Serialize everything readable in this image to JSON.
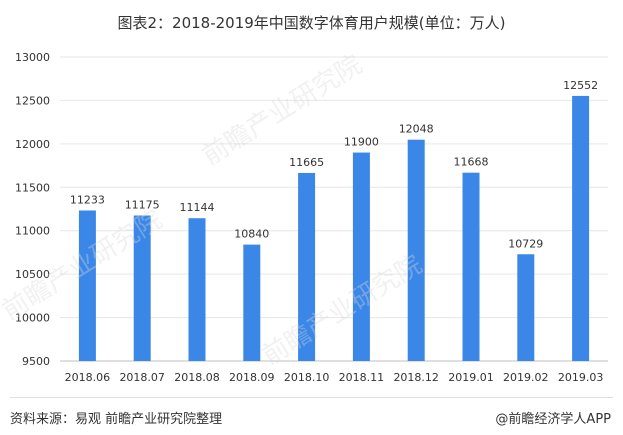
{
  "chart_data": {
    "type": "bar",
    "title": "图表2：2018-2019年中国数字体育用户规模(单位：万人)",
    "categories": [
      "2018.06",
      "2018.07",
      "2018.08",
      "2018.09",
      "2018.10",
      "2018.11",
      "2018.12",
      "2019.01",
      "2019.02",
      "2019.03"
    ],
    "values": [
      11233,
      11175,
      11144,
      10840,
      11665,
      11900,
      12048,
      11668,
      10729,
      12552
    ],
    "data_labels": [
      "11233",
      "11175",
      "11144",
      "10840",
      "11665",
      "11900",
      "12048",
      "11668",
      "10729",
      "12552"
    ],
    "yticks": [
      9500,
      10000,
      10500,
      11000,
      11500,
      12000,
      12500,
      13000
    ],
    "ytick_labels": [
      "9500",
      "10000",
      "10500",
      "11000",
      "11500",
      "12000",
      "12500",
      "13000"
    ],
    "ylim": [
      9500,
      13000
    ],
    "xlabel": "",
    "ylabel": "",
    "grid": true,
    "legend": "none",
    "bar_color": "#3b87e8"
  },
  "footer": {
    "source": "资料来源：易观 前瞻产业研究院整理",
    "brand": "@前瞻经济学人APP"
  },
  "watermark": {
    "text": "前瞻产业研究院"
  }
}
